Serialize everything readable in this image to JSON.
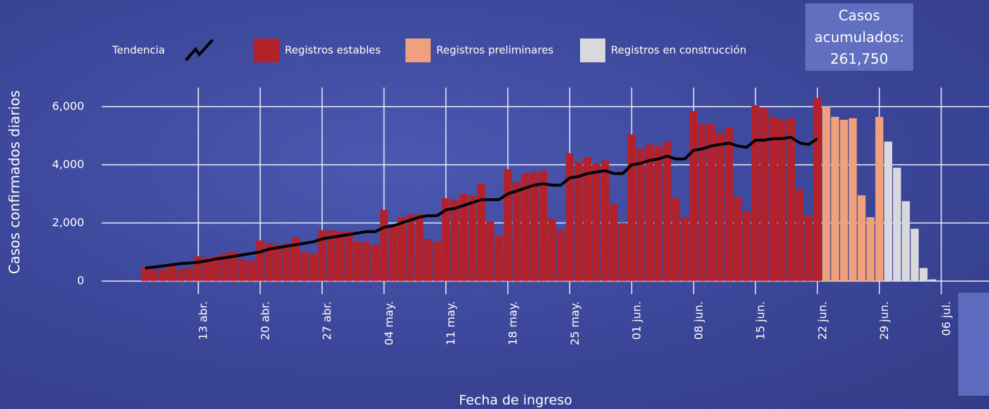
{
  "chart_data": {
    "type": "bar",
    "y_label": "Casos confirmados diarios",
    "x_label": "Fecha de ingreso",
    "annotation": "Casos acumulados:",
    "annotation_value": "261,750",
    "categories": [
      null,
      null,
      null,
      null,
      null,
      null,
      "13 abr.",
      null,
      null,
      null,
      null,
      null,
      null,
      "20 abr.",
      null,
      null,
      null,
      null,
      null,
      null,
      "27 abr.",
      null,
      null,
      null,
      null,
      null,
      null,
      "04 may.",
      null,
      null,
      null,
      null,
      null,
      null,
      "11 may.",
      null,
      null,
      null,
      null,
      null,
      null,
      "18 may.",
      null,
      null,
      null,
      null,
      null,
      null,
      "25 may.",
      null,
      null,
      null,
      null,
      null,
      null,
      "01 jun.",
      null,
      null,
      null,
      null,
      null,
      null,
      "08 jun.",
      null,
      null,
      null,
      null,
      null,
      null,
      "15 jun.",
      null,
      null,
      null,
      null,
      null,
      null,
      "22 jun.",
      null,
      null,
      null,
      null,
      null,
      null,
      "29 jun.",
      null,
      null,
      null,
      null,
      null,
      null,
      "06 jul."
    ],
    "ylim": [
      -450,
      6900
    ],
    "yticks": [
      0,
      {
        "value": 2000,
        "label": "2,000"
      },
      {
        "value": 4000,
        "label": "4,000"
      },
      {
        "value": 6000,
        "label": "6,000"
      }
    ],
    "grid": true,
    "series": [
      {
        "name": "Tendencia",
        "type": "line",
        "color": "#000000",
        "values": [
          450,
          480,
          520,
          560,
          600,
          620,
          650,
          700,
          760,
          800,
          850,
          900,
          950,
          1000,
          1100,
          1150,
          1200,
          1250,
          1300,
          1350,
          1450,
          1500,
          1550,
          1600,
          1650,
          1700,
          1700,
          1850,
          1900,
          2000,
          2100,
          2200,
          2250,
          2250,
          2450,
          2500,
          2600,
          2700,
          2800,
          2800,
          2800,
          3000,
          3100,
          3200,
          3300,
          3350,
          3300,
          3300,
          3550,
          3600,
          3700,
          3750,
          3800,
          3700,
          3700,
          4000,
          4050,
          4150,
          4200,
          4300,
          4200,
          4200,
          4500,
          4550,
          4650,
          4700,
          4750,
          4650,
          4600,
          4850,
          4850,
          4900,
          4900,
          4950,
          4750,
          4700,
          4900,
          null,
          null,
          null,
          null,
          null,
          null,
          null,
          null,
          null,
          null,
          null,
          null,
          null,
          null
        ]
      },
      {
        "name": "Registros estables",
        "color": "#b3212b",
        "values": [
          500,
          400,
          400,
          550,
          420,
          450,
          850,
          800,
          850,
          950,
          1000,
          750,
          700,
          1400,
          1300,
          1250,
          1300,
          1500,
          1000,
          950,
          1750,
          1750,
          1700,
          1700,
          1350,
          1350,
          1250,
          2450,
          1900,
          2200,
          2300,
          2300,
          1450,
          1350,
          2850,
          2800,
          3000,
          2950,
          3350,
          2050,
          1550,
          3850,
          3400,
          3700,
          3750,
          3800,
          2150,
          1750,
          4400,
          4100,
          4250,
          4050,
          4150,
          2650,
          2000,
          5050,
          4550,
          4700,
          4650,
          4800,
          2850,
          2200,
          5850,
          5400,
          5400,
          5100,
          5300,
          2900,
          2400,
          6050,
          5950,
          5650,
          5550,
          5600,
          3150,
          2250,
          6300,
          null,
          null,
          null,
          null,
          null,
          null,
          null,
          null,
          null,
          null,
          null,
          null,
          null,
          null
        ]
      },
      {
        "name": "Registros preliminares",
        "color": "#f0a07c",
        "values": [
          null,
          null,
          null,
          null,
          null,
          null,
          null,
          null,
          null,
          null,
          null,
          null,
          null,
          null,
          null,
          null,
          null,
          null,
          null,
          null,
          null,
          null,
          null,
          null,
          null,
          null,
          null,
          null,
          null,
          null,
          null,
          null,
          null,
          null,
          null,
          null,
          null,
          null,
          null,
          null,
          null,
          null,
          null,
          null,
          null,
          null,
          null,
          null,
          null,
          null,
          null,
          null,
          null,
          null,
          null,
          null,
          null,
          null,
          null,
          null,
          null,
          null,
          null,
          null,
          null,
          null,
          null,
          null,
          null,
          null,
          null,
          null,
          null,
          null,
          null,
          null,
          null,
          6000,
          5650,
          5550,
          5600,
          2950,
          2200,
          5650,
          null,
          null,
          null,
          null,
          null,
          null,
          null
        ]
      },
      {
        "name": "Registros en construcción",
        "color": "#d9d9dd",
        "values": [
          null,
          null,
          null,
          null,
          null,
          null,
          null,
          null,
          null,
          null,
          null,
          null,
          null,
          null,
          null,
          null,
          null,
          null,
          null,
          null,
          null,
          null,
          null,
          null,
          null,
          null,
          null,
          null,
          null,
          null,
          null,
          null,
          null,
          null,
          null,
          null,
          null,
          null,
          null,
          null,
          null,
          null,
          null,
          null,
          null,
          null,
          null,
          null,
          null,
          null,
          null,
          null,
          null,
          null,
          null,
          null,
          null,
          null,
          null,
          null,
          null,
          null,
          null,
          null,
          null,
          null,
          null,
          null,
          null,
          null,
          null,
          null,
          null,
          null,
          null,
          null,
          null,
          null,
          null,
          null,
          null,
          null,
          null,
          null,
          4800,
          3900,
          2750,
          1800,
          450,
          60,
          null
        ]
      }
    ]
  }
}
